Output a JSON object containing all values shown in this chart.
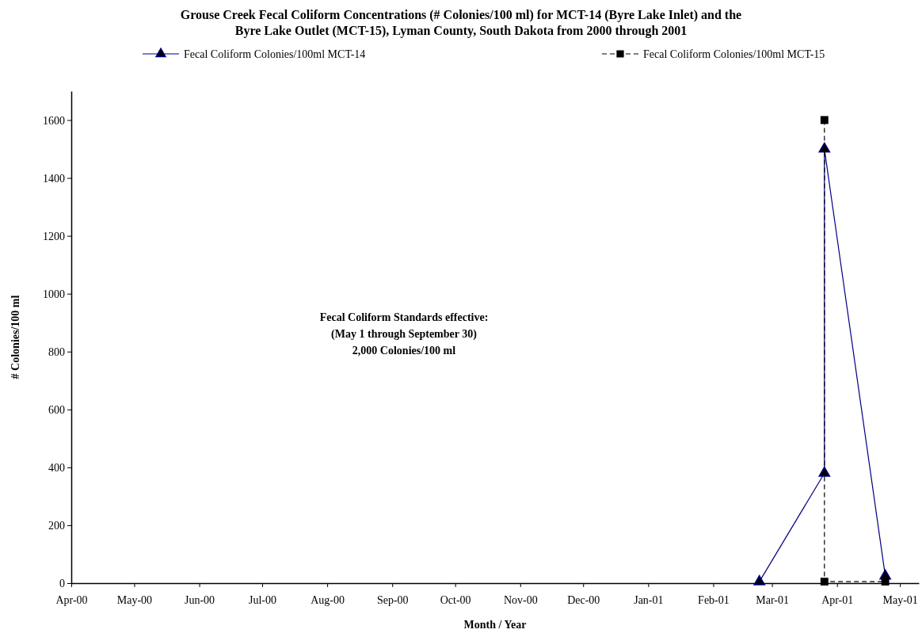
{
  "chart_data": {
    "type": "line",
    "title": "Grouse Creek Fecal Coliform Concentrations (# Colonies/100 ml) for MCT-14 (Byre Lake Inlet) and the Byre Lake Outlet (MCT-15), Lyman County, South Dakota from 2000 through 2001",
    "xlabel": "Month / Year",
    "ylabel": "# Colonies/100 ml",
    "annotations": [
      "Fecal Coliform Standards effective:\n(May 1 through September 30)\n2,000 Colonies/100 ml"
    ],
    "xlim": [
      "2000-04-01",
      "2001-05-10"
    ],
    "xticks": [
      {
        "value": "2000-04-01",
        "label": "Apr-00"
      },
      {
        "value": "2000-05-01",
        "label": "May-00"
      },
      {
        "value": "2000-06-01",
        "label": "Jun-00"
      },
      {
        "value": "2000-07-01",
        "label": "Jul-00"
      },
      {
        "value": "2000-08-01",
        "label": "Aug-00"
      },
      {
        "value": "2000-09-01",
        "label": "Sep-00"
      },
      {
        "value": "2000-10-01",
        "label": "Oct-00"
      },
      {
        "value": "2000-11-01",
        "label": "Nov-00"
      },
      {
        "value": "2000-12-01",
        "label": "Dec-00"
      },
      {
        "value": "2001-01-01",
        "label": "Jan-01"
      },
      {
        "value": "2001-02-01",
        "label": "Feb-01"
      },
      {
        "value": "2001-03-01",
        "label": "Mar-01"
      },
      {
        "value": "2001-04-01",
        "label": "Apr-01"
      },
      {
        "value": "2001-05-01",
        "label": "May-01"
      }
    ],
    "ylim": [
      0,
      1700
    ],
    "yticks": [
      0,
      200,
      400,
      600,
      800,
      1000,
      1200,
      1400,
      1600
    ],
    "grid": false,
    "legend": "top",
    "series": [
      {
        "name": "Fecal Coliform Colonies/100ml MCT-14",
        "color": "#000080",
        "marker": "triangle",
        "line_style": "solid",
        "x": [
          "2001-02-23",
          "2001-03-26",
          "2001-03-26",
          "2001-04-24"
        ],
        "values": [
          5,
          380,
          1500,
          25
        ]
      },
      {
        "name": "Fecal Coliform Colonies/100ml MCT-15",
        "color": "#000000",
        "marker": "square",
        "line_style": "dashed",
        "x": [
          "2001-03-26",
          "2001-03-26",
          "2001-04-24"
        ],
        "values": [
          1600,
          5,
          5
        ]
      }
    ]
  }
}
